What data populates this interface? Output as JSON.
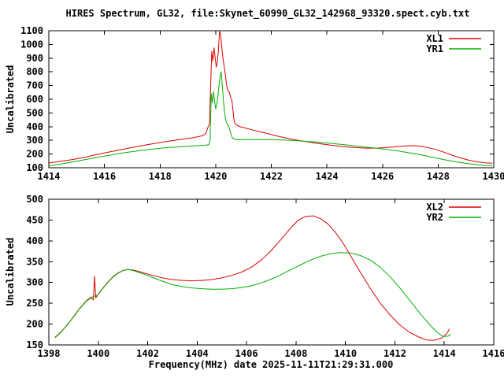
{
  "title": "HIRES Spectrum, GL32, file:Skynet_60990_GL32_142968_93320.spect.cyb.txt",
  "xlabel": "Frequency(MHz) date 2025-11-11T21:29:31.000",
  "colors": {
    "background": "#ffffff",
    "axis": "#000000",
    "series_red": "#dd0000",
    "series_green": "#00b000"
  },
  "chart_data": [
    {
      "type": "line",
      "panel": "top",
      "ylabel": "Uncalibrated",
      "xlim": [
        1414,
        1430
      ],
      "ylim": [
        100,
        1100
      ],
      "x_ticks": [
        1414,
        1416,
        1418,
        1420,
        1422,
        1424,
        1426,
        1428,
        1430
      ],
      "y_ticks": [
        100,
        200,
        300,
        400,
        500,
        600,
        700,
        800,
        900,
        1000,
        1100
      ],
      "grid": false,
      "legend_position": "top-right",
      "series": [
        {
          "name": "XL1",
          "color": "series_red",
          "points": [
            [
              1414,
              135
            ],
            [
              1414.4,
              146
            ],
            [
              1414.8,
              158
            ],
            [
              1415.2,
              172
            ],
            [
              1415.6,
              190
            ],
            [
              1416,
              208
            ],
            [
              1416.4,
              224
            ],
            [
              1416.8,
              240
            ],
            [
              1417.2,
              256
            ],
            [
              1417.6,
              270
            ],
            [
              1418,
              284
            ],
            [
              1418.4,
              297
            ],
            [
              1418.8,
              308
            ],
            [
              1419.2,
              320
            ],
            [
              1419.5,
              332
            ],
            [
              1419.65,
              350
            ],
            [
              1419.72,
              395
            ],
            [
              1419.78,
              420
            ],
            [
              1419.82,
              700
            ],
            [
              1419.86,
              950
            ],
            [
              1419.9,
              880
            ],
            [
              1419.94,
              975
            ],
            [
              1419.98,
              905
            ],
            [
              1420.02,
              835
            ],
            [
              1420.06,
              870
            ],
            [
              1420.1,
              960
            ],
            [
              1420.14,
              1095
            ],
            [
              1420.18,
              1075
            ],
            [
              1420.22,
              980
            ],
            [
              1420.26,
              900
            ],
            [
              1420.3,
              845
            ],
            [
              1420.34,
              790
            ],
            [
              1420.38,
              720
            ],
            [
              1420.42,
              672
            ],
            [
              1420.46,
              655
            ],
            [
              1420.5,
              648
            ],
            [
              1420.54,
              610
            ],
            [
              1420.58,
              595
            ],
            [
              1420.62,
              520
            ],
            [
              1420.66,
              445
            ],
            [
              1420.7,
              422
            ],
            [
              1420.78,
              408
            ],
            [
              1420.9,
              398
            ],
            [
              1421.1,
              388
            ],
            [
              1421.4,
              372
            ],
            [
              1421.7,
              358
            ],
            [
              1422,
              342
            ],
            [
              1422.3,
              327
            ],
            [
              1422.6,
              314
            ],
            [
              1423,
              298
            ],
            [
              1423.4,
              286
            ],
            [
              1423.8,
              274
            ],
            [
              1424.2,
              263
            ],
            [
              1424.6,
              254
            ],
            [
              1425,
              247
            ],
            [
              1425.4,
              243
            ],
            [
              1425.8,
              243
            ],
            [
              1426.2,
              248
            ],
            [
              1426.6,
              256
            ],
            [
              1427,
              261
            ],
            [
              1427.3,
              259
            ],
            [
              1427.6,
              249
            ],
            [
              1427.9,
              234
            ],
            [
              1428.2,
              214
            ],
            [
              1428.5,
              192
            ],
            [
              1428.8,
              172
            ],
            [
              1429.1,
              155
            ],
            [
              1429.4,
              143
            ],
            [
              1429.7,
              136
            ],
            [
              1429.95,
              133
            ]
          ]
        },
        {
          "name": "YR1",
          "color": "series_green",
          "points": [
            [
              1414,
              114
            ],
            [
              1414.4,
              126
            ],
            [
              1414.8,
              140
            ],
            [
              1415.2,
              155
            ],
            [
              1415.6,
              170
            ],
            [
              1416,
              185
            ],
            [
              1416.4,
              199
            ],
            [
              1416.8,
              212
            ],
            [
              1417.2,
              223
            ],
            [
              1417.6,
              233
            ],
            [
              1418,
              242
            ],
            [
              1418.4,
              249
            ],
            [
              1418.8,
              254
            ],
            [
              1419.2,
              259
            ],
            [
              1419.6,
              264
            ],
            [
              1419.75,
              268
            ],
            [
              1419.8,
              300
            ],
            [
              1419.84,
              640
            ],
            [
              1419.88,
              575
            ],
            [
              1419.92,
              655
            ],
            [
              1419.96,
              585
            ],
            [
              1420,
              530
            ],
            [
              1420.04,
              560
            ],
            [
              1420.08,
              620
            ],
            [
              1420.12,
              700
            ],
            [
              1420.16,
              770
            ],
            [
              1420.2,
              800
            ],
            [
              1420.24,
              690
            ],
            [
              1420.28,
              585
            ],
            [
              1420.32,
              500
            ],
            [
              1420.36,
              450
            ],
            [
              1420.4,
              425
            ],
            [
              1420.44,
              408
            ],
            [
              1420.48,
              395
            ],
            [
              1420.52,
              370
            ],
            [
              1420.56,
              340
            ],
            [
              1420.6,
              318
            ],
            [
              1420.68,
              308
            ],
            [
              1420.8,
              306
            ],
            [
              1421,
              305
            ],
            [
              1421.4,
              306
            ],
            [
              1421.8,
              306
            ],
            [
              1422.2,
              304
            ],
            [
              1422.6,
              301
            ],
            [
              1423,
              296
            ],
            [
              1423.4,
              290
            ],
            [
              1423.8,
              284
            ],
            [
              1424.2,
              277
            ],
            [
              1424.6,
              269
            ],
            [
              1425,
              260
            ],
            [
              1425.4,
              251
            ],
            [
              1425.8,
              242
            ],
            [
              1426.2,
              232
            ],
            [
              1426.6,
              221
            ],
            [
              1427,
              208
            ],
            [
              1427.4,
              193
            ],
            [
              1427.8,
              176
            ],
            [
              1428.2,
              160
            ],
            [
              1428.6,
              145
            ],
            [
              1429,
              132
            ],
            [
              1429.4,
              122
            ],
            [
              1429.7,
              117
            ],
            [
              1429.95,
              115
            ]
          ]
        }
      ]
    },
    {
      "type": "line",
      "panel": "bottom",
      "ylabel": "Uncalibrated",
      "xlim": [
        1398,
        1416
      ],
      "ylim": [
        150,
        500
      ],
      "x_ticks": [
        1398,
        1400,
        1402,
        1404,
        1406,
        1408,
        1410,
        1412,
        1414,
        1416
      ],
      "y_ticks": [
        150,
        200,
        250,
        300,
        350,
        400,
        450,
        500
      ],
      "grid": false,
      "legend_position": "top-right",
      "series": [
        {
          "name": "XL2",
          "color": "series_red",
          "points": [
            [
              1398.25,
              168
            ],
            [
              1398.5,
              182
            ],
            [
              1398.75,
              198
            ],
            [
              1399,
              218
            ],
            [
              1399.25,
              238
            ],
            [
              1399.5,
              255
            ],
            [
              1399.7,
              265
            ],
            [
              1399.8,
              258
            ],
            [
              1399.85,
              315
            ],
            [
              1399.9,
              263
            ],
            [
              1400,
              272
            ],
            [
              1400.2,
              288
            ],
            [
              1400.4,
              302
            ],
            [
              1400.6,
              314
            ],
            [
              1400.8,
              323
            ],
            [
              1401,
              329
            ],
            [
              1401.2,
              331
            ],
            [
              1401.4,
              330
            ],
            [
              1401.6,
              327
            ],
            [
              1401.9,
              322
            ],
            [
              1402.2,
              317
            ],
            [
              1402.6,
              311
            ],
            [
              1403,
              307
            ],
            [
              1403.4,
              305
            ],
            [
              1403.8,
              304
            ],
            [
              1404.2,
              305
            ],
            [
              1404.6,
              307
            ],
            [
              1405,
              311
            ],
            [
              1405.4,
              317
            ],
            [
              1405.8,
              325
            ],
            [
              1406.2,
              337
            ],
            [
              1406.6,
              354
            ],
            [
              1407,
              377
            ],
            [
              1407.4,
              404
            ],
            [
              1407.8,
              432
            ],
            [
              1408.1,
              450
            ],
            [
              1408.4,
              459
            ],
            [
              1408.7,
              460
            ],
            [
              1409,
              453
            ],
            [
              1409.3,
              440
            ],
            [
              1409.6,
              420
            ],
            [
              1409.9,
              395
            ],
            [
              1410.2,
              365
            ],
            [
              1410.6,
              325
            ],
            [
              1411,
              286
            ],
            [
              1411.4,
              251
            ],
            [
              1411.8,
              222
            ],
            [
              1412.2,
              198
            ],
            [
              1412.6,
              180
            ],
            [
              1413,
              168
            ],
            [
              1413.3,
              162
            ],
            [
              1413.6,
              161
            ],
            [
              1413.9,
              167
            ],
            [
              1414.1,
              177
            ],
            [
              1414.2,
              188
            ]
          ]
        },
        {
          "name": "YR2",
          "color": "series_green",
          "points": [
            [
              1398.25,
              167
            ],
            [
              1398.5,
              181
            ],
            [
              1399,
              217
            ],
            [
              1399.25,
              237
            ],
            [
              1399.5,
              254
            ],
            [
              1399.75,
              265
            ],
            [
              1400,
              271
            ],
            [
              1400.2,
              287
            ],
            [
              1400.4,
              301
            ],
            [
              1400.6,
              313
            ],
            [
              1400.8,
              322
            ],
            [
              1401,
              329
            ],
            [
              1401.2,
              331
            ],
            [
              1401.4,
              329
            ],
            [
              1401.6,
              325
            ],
            [
              1401.9,
              319
            ],
            [
              1402.2,
              312
            ],
            [
              1402.6,
              303
            ],
            [
              1403,
              295
            ],
            [
              1403.4,
              290
            ],
            [
              1403.8,
              287
            ],
            [
              1404.2,
              285
            ],
            [
              1404.6,
              284
            ],
            [
              1405,
              284
            ],
            [
              1405.4,
              285
            ],
            [
              1405.8,
              288
            ],
            [
              1406.2,
              292
            ],
            [
              1406.6,
              299
            ],
            [
              1407,
              308
            ],
            [
              1407.4,
              319
            ],
            [
              1407.8,
              331
            ],
            [
              1408.2,
              343
            ],
            [
              1408.6,
              354
            ],
            [
              1409,
              363
            ],
            [
              1409.4,
              369
            ],
            [
              1409.8,
              372
            ],
            [
              1410.2,
              371
            ],
            [
              1410.6,
              365
            ],
            [
              1411,
              354
            ],
            [
              1411.4,
              337
            ],
            [
              1411.8,
              314
            ],
            [
              1412.2,
              287
            ],
            [
              1412.6,
              257
            ],
            [
              1413,
              227
            ],
            [
              1413.4,
              199
            ],
            [
              1413.7,
              181
            ],
            [
              1413.95,
              170
            ],
            [
              1414.15,
              171
            ],
            [
              1414.25,
              176
            ]
          ]
        }
      ]
    }
  ]
}
